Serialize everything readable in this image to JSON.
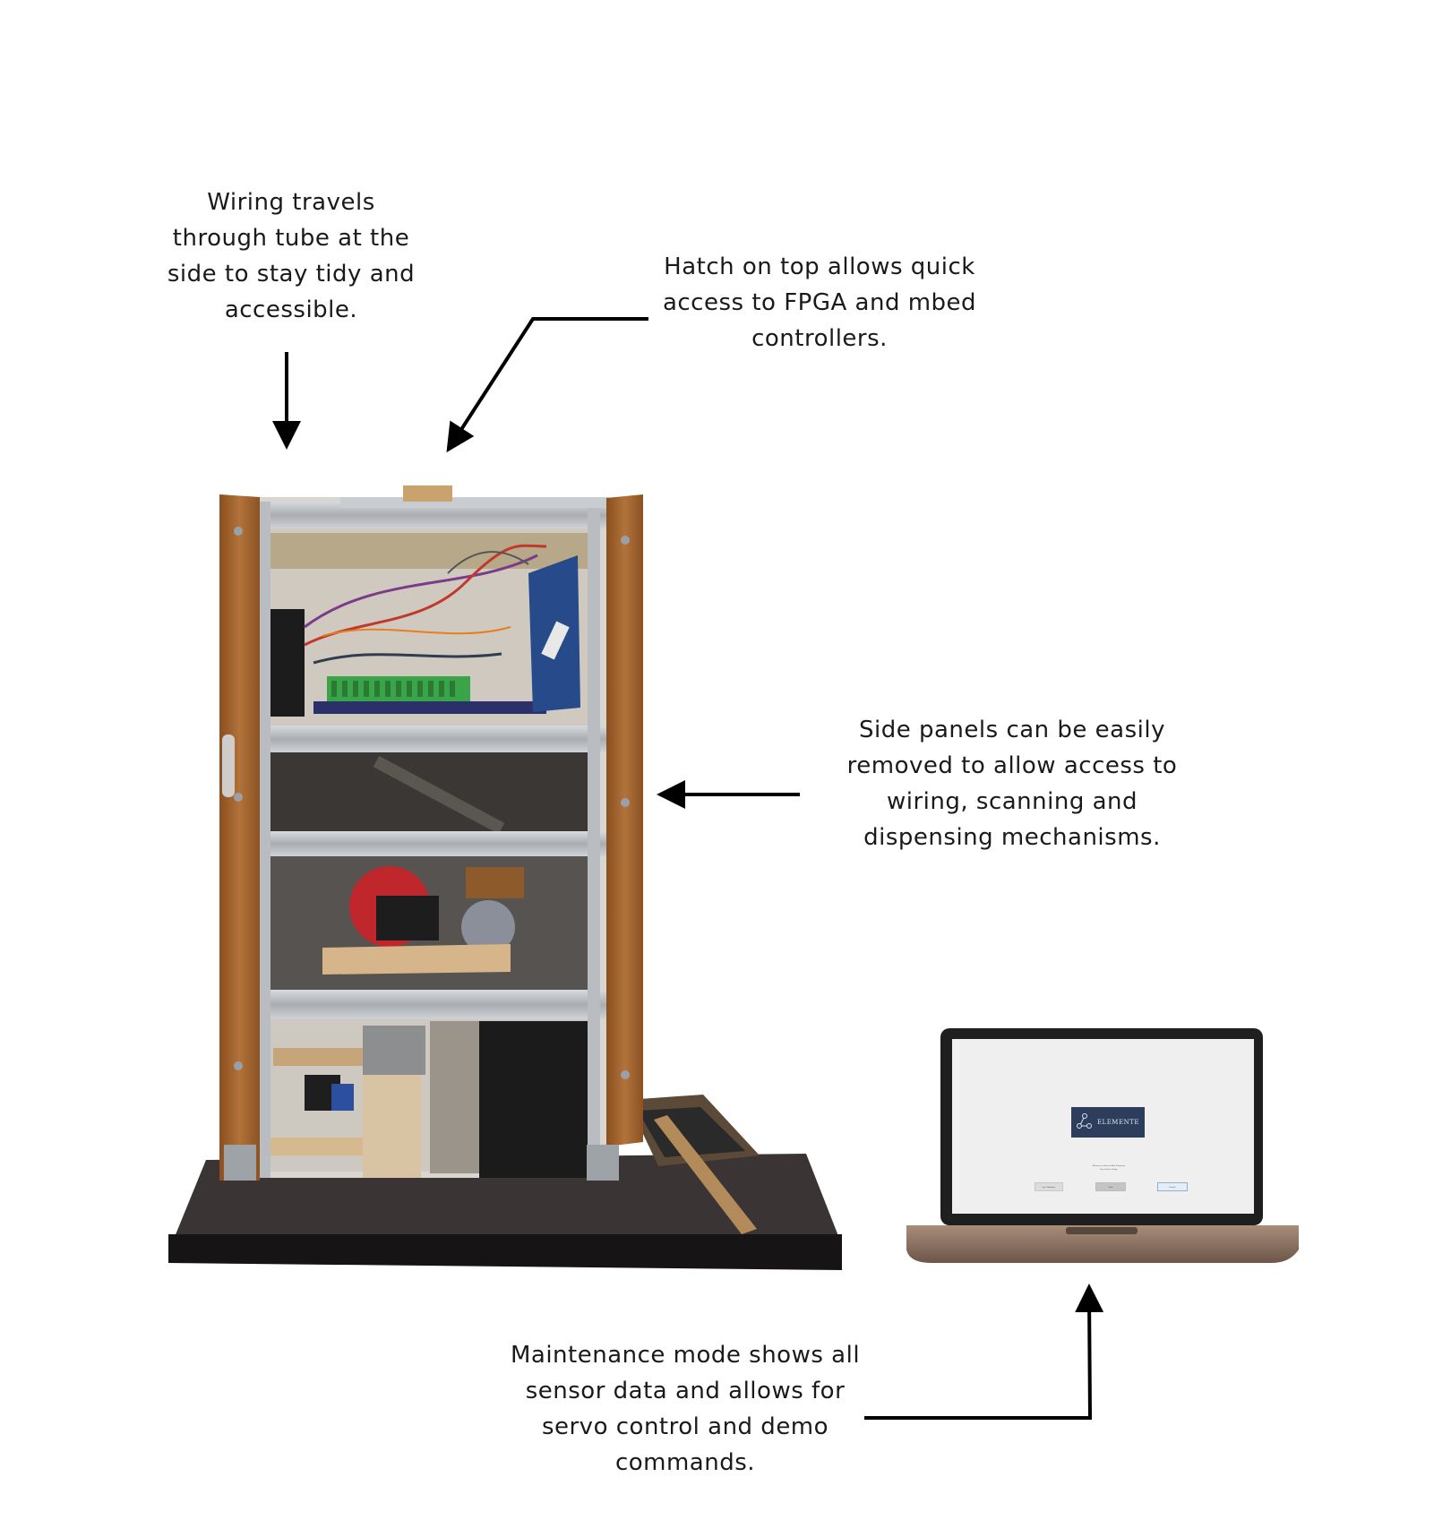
{
  "annotations": {
    "wiring": "Wiring travels\nthrough tube at the\nside to stay tidy and\naccessible.",
    "hatch": "Hatch on top allows quick\naccess to FPGA and mbed\ncontrollers.",
    "side_panels": "Side panels can be easily\nremoved to allow access to\nwiring, scanning and\ndispensing mechanisms.",
    "maintenance": "Maintenance mode shows all\nsensor data and allows for\nservo control and demo\ncommands."
  },
  "laptop_app": {
    "logo_text": "ELEMENTE",
    "welcome": "Welcome to Element Auto Dispenser\nPress Start to Begin",
    "buttons": [
      "User Database",
      "Start",
      "Contact"
    ]
  },
  "colors": {
    "wood": "#a5652b",
    "aluminium": "#b9bcc0",
    "base_board": "#2f2b2a",
    "laptop_bezel": "#1f1f1f",
    "laptop_body": "#8a6f5e",
    "arrow": "#000000"
  }
}
